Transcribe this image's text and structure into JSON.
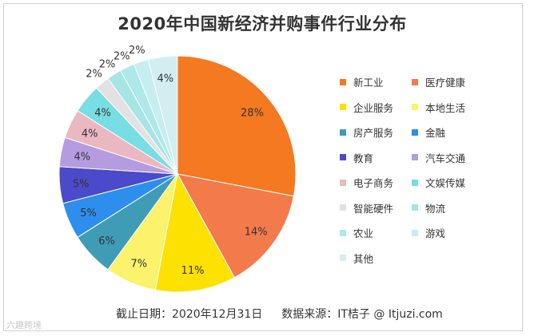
{
  "chart_data": {
    "type": "pie",
    "title": "2020年中国新经济并购事件行业分布",
    "categories": [
      "新工业",
      "医疗健康",
      "企业服务",
      "本地生活",
      "房产服务",
      "金融",
      "教育",
      "汽车交通",
      "电子商务",
      "文娱传媒",
      "智能硬件",
      "物流",
      "农业",
      "游戏",
      "其他"
    ],
    "values": [
      28,
      14,
      11,
      7,
      6,
      5,
      5,
      4,
      4,
      4,
      2,
      2,
      2,
      2,
      4
    ],
    "value_labels": [
      "28%",
      "14%",
      "11%",
      "7%",
      "6%",
      "5%",
      "5%",
      "4%",
      "4%",
      "4%",
      "2%",
      "2%",
      "2%",
      "2%",
      "4%"
    ],
    "colors": [
      "#F47920",
      "#F37A4B",
      "#FDE100",
      "#FCF26B",
      "#3E9CB7",
      "#2D8EEE",
      "#4B4ACB",
      "#B59BE0",
      "#EBB7C1",
      "#77DEE3",
      "#E3E1E1",
      "#A6E4E6",
      "#ADE8EB",
      "#C5EEF0",
      "#D2EEF1"
    ],
    "legend_position": "right",
    "start_angle_deg": 0,
    "direction": "clockwise"
  },
  "footer": {
    "date_text": "截止日期：2020年12月31日",
    "source_text": "数据来源：IT桔子 @ Itjuzi.com"
  },
  "watermark": "六趣跨境"
}
